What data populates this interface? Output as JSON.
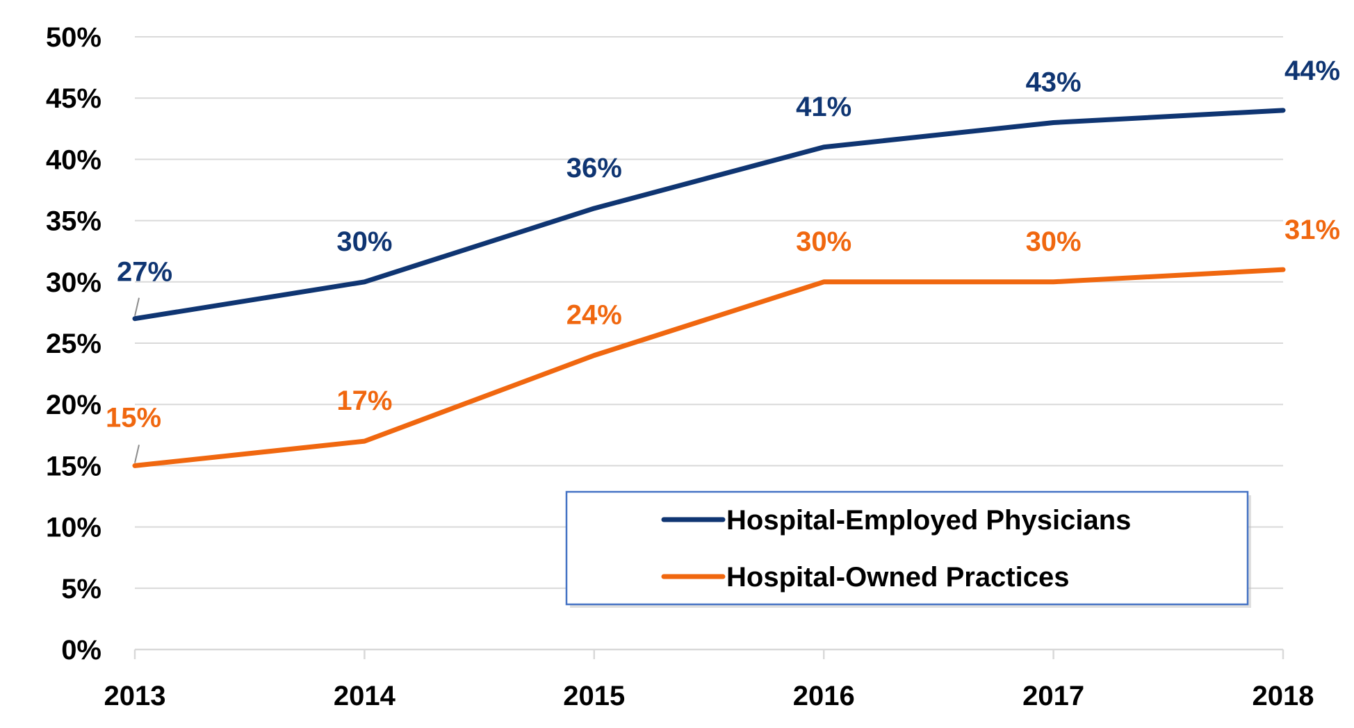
{
  "chart_data": {
    "type": "line",
    "title": "",
    "xlabel": "",
    "ylabel": "",
    "x": [
      "2013",
      "2014",
      "2015",
      "2016",
      "2017",
      "2018"
    ],
    "ylim": [
      0,
      0.5
    ],
    "yticks": [
      {
        "value": 0.0,
        "label": "0%"
      },
      {
        "value": 0.05,
        "label": "5%"
      },
      {
        "value": 0.1,
        "label": "10%"
      },
      {
        "value": 0.15,
        "label": "15%"
      },
      {
        "value": 0.2,
        "label": "20%"
      },
      {
        "value": 0.25,
        "label": "25%"
      },
      {
        "value": 0.3,
        "label": "30%"
      },
      {
        "value": 0.35,
        "label": "35%"
      },
      {
        "value": 0.4,
        "label": "40%"
      },
      {
        "value": 0.45,
        "label": "45%"
      },
      {
        "value": 0.5,
        "label": "50%"
      }
    ],
    "grid": true,
    "legend_position": "bottom-right",
    "series": [
      {
        "name": "Hospital-Employed Physicians",
        "color": "#0f3572",
        "values": [
          0.27,
          0.3,
          0.36,
          0.41,
          0.43,
          0.44
        ],
        "labels": [
          "27%",
          "30%",
          "36%",
          "41%",
          "43%",
          "44%"
        ]
      },
      {
        "name": "Hospital-Owned Practices",
        "color": "#f0670f",
        "values": [
          0.15,
          0.17,
          0.24,
          0.3,
          0.3,
          0.31
        ],
        "labels": [
          "15%",
          "17%",
          "24%",
          "30%",
          "30%",
          "31%"
        ]
      }
    ]
  }
}
